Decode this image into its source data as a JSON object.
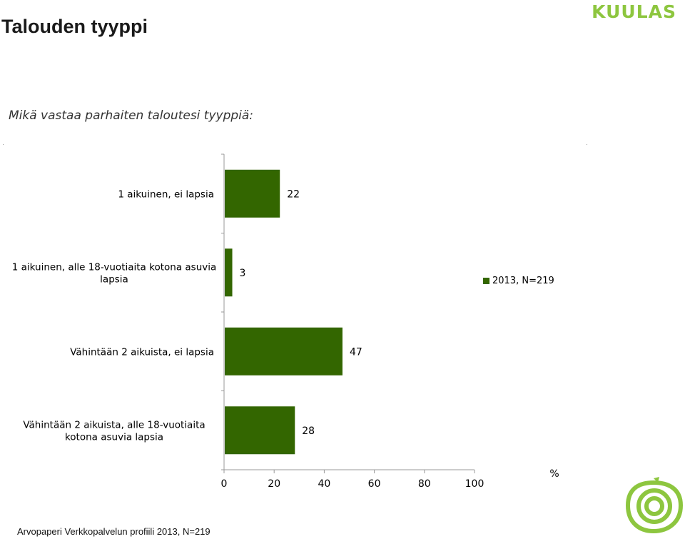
{
  "header": {
    "title": "Talouden tyyppi",
    "subtitle": "Mikä vastaa parhaiten taloutesi tyyppiä:",
    "logo_text": "KUULAS"
  },
  "footer": {
    "source": "Arvopaperi Verkkopalvelun profiili 2013, N=219"
  },
  "colors": {
    "bar": "#336600",
    "logo_text": "#8dc63f",
    "logo_mark": "#8dc63f"
  },
  "logo_mark_icon": "apple-rings-icon",
  "chart_data": {
    "type": "bar",
    "orientation": "horizontal",
    "categories": [
      [
        "1 aikuinen, ei lapsia"
      ],
      [
        "1 aikuinen, alle 18-vuotiaita kotona asuvia",
        "lapsia"
      ],
      [
        "Vähintään 2 aikuista, ei lapsia"
      ],
      [
        "Vähintään 2 aikuista, alle 18-vuotiaita",
        "kotona asuvia lapsia"
      ]
    ],
    "series": [
      {
        "name": "2013, N=219",
        "values": [
          22,
          3,
          47,
          28
        ]
      }
    ],
    "data_labels": [
      "22",
      "3",
      "47",
      "28"
    ],
    "xlim": [
      0,
      100
    ],
    "xticks": [
      "0",
      "20",
      "40",
      "60",
      "80",
      "100"
    ],
    "xlabel": "%",
    "grid": false,
    "legend_position": "right"
  }
}
